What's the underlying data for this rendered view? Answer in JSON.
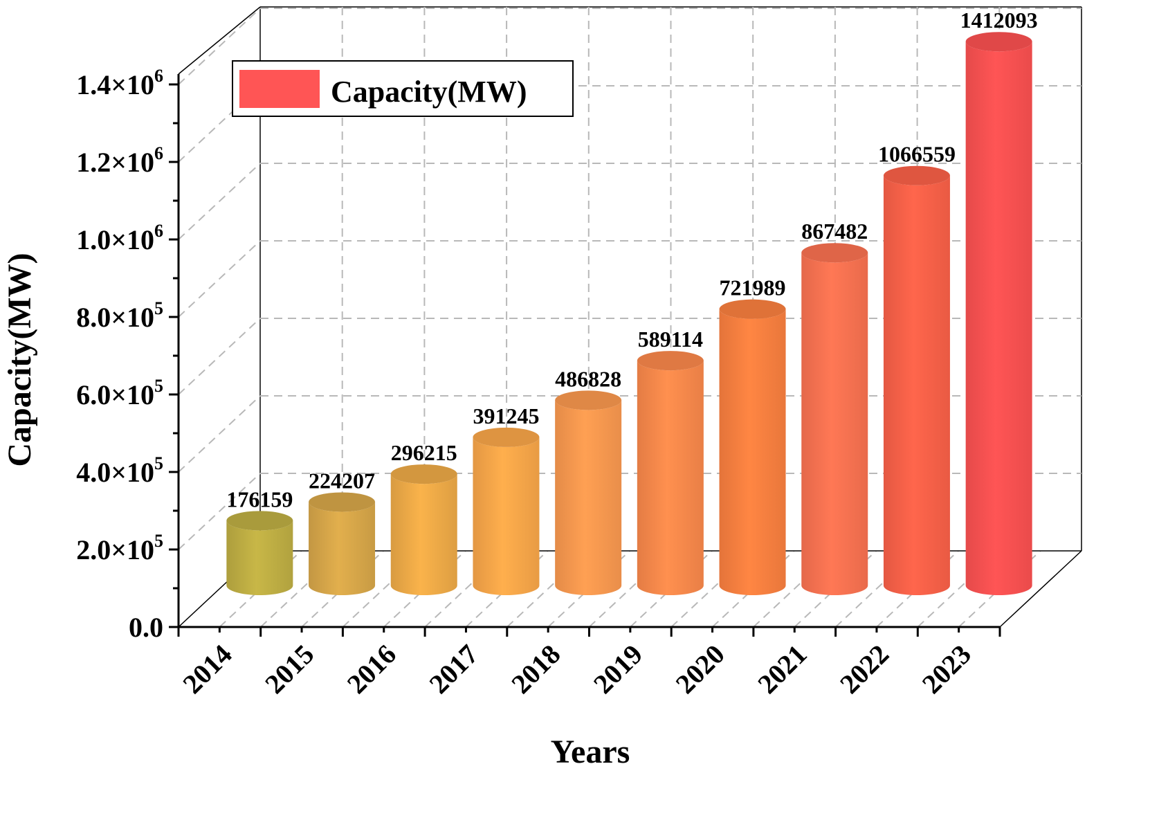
{
  "chart_data": {
    "type": "bar",
    "style": "3d-cylinder",
    "categories": [
      "2014",
      "2015",
      "2016",
      "2017",
      "2018",
      "2019",
      "2020",
      "2021",
      "2022",
      "2023"
    ],
    "series": [
      {
        "name": "Capacity(MW)",
        "values": [
          176159,
          224207,
          296215,
          391245,
          486828,
          589114,
          721989,
          867482,
          1066559,
          1412093
        ],
        "data_labels": [
          "176159",
          "224207",
          "296215",
          "391245",
          "486828",
          "589114",
          "721989",
          "867482",
          "1066559",
          "1412093"
        ]
      }
    ],
    "xlabel": "Years",
    "ylabel": "Capacity(MW)",
    "ylim": [
      0,
      1400000
    ],
    "y_ticks": [
      {
        "value": 0,
        "mantissa": "0.0",
        "exponent": ""
      },
      {
        "value": 200000,
        "mantissa": "2.0×10",
        "exponent": "5"
      },
      {
        "value": 400000,
        "mantissa": "4.0×10",
        "exponent": "5"
      },
      {
        "value": 600000,
        "mantissa": "6.0×10",
        "exponent": "5"
      },
      {
        "value": 800000,
        "mantissa": "8.0×10",
        "exponent": "5"
      },
      {
        "value": 1000000,
        "mantissa": "1.0×10",
        "exponent": "6"
      },
      {
        "value": 1200000,
        "mantissa": "1.2×10",
        "exponent": "6"
      },
      {
        "value": 1400000,
        "mantissa": "1.4×10",
        "exponent": "6"
      }
    ],
    "grid": true,
    "legend": {
      "position": "top-left",
      "label": "Capacity(MW)",
      "color": "#ff5555"
    },
    "bar_colors": [
      "#c0b044",
      "#d9a84a",
      "#f0ac48",
      "#fca84a",
      "#fd9a50",
      "#fd8a4c",
      "#fd8140",
      "#fd7352",
      "#fd6249",
      "#fe5252"
    ]
  }
}
